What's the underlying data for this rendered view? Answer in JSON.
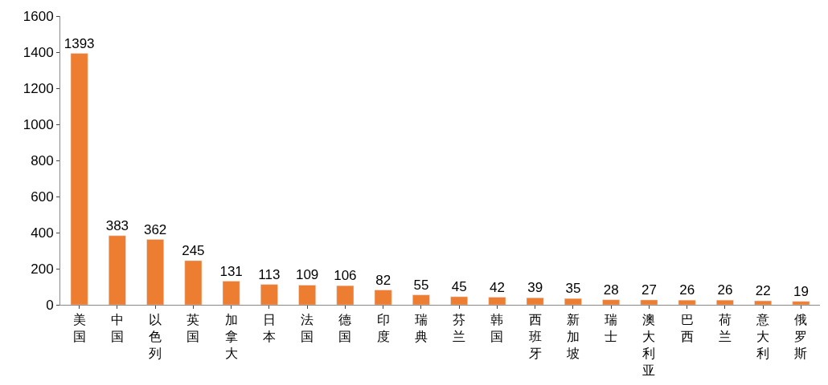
{
  "chart_data": {
    "type": "bar",
    "categories": [
      "美国",
      "中国",
      "以色列",
      "英国",
      "加拿大",
      "日本",
      "法国",
      "德国",
      "印度",
      "瑞典",
      "芬兰",
      "韩国",
      "西班牙",
      "新加坡",
      "瑞士",
      "澳大利亚",
      "巴西",
      "荷兰",
      "意大利",
      "俄罗斯"
    ],
    "values": [
      1393,
      383,
      362,
      245,
      131,
      113,
      109,
      106,
      82,
      55,
      45,
      42,
      39,
      35,
      28,
      27,
      26,
      26,
      22,
      19
    ],
    "color": "#ed7d31",
    "ylim": [
      0,
      1600
    ],
    "yticks": [
      0,
      200,
      400,
      600,
      800,
      1000,
      1200,
      1400,
      1600
    ],
    "data_labels": true
  }
}
